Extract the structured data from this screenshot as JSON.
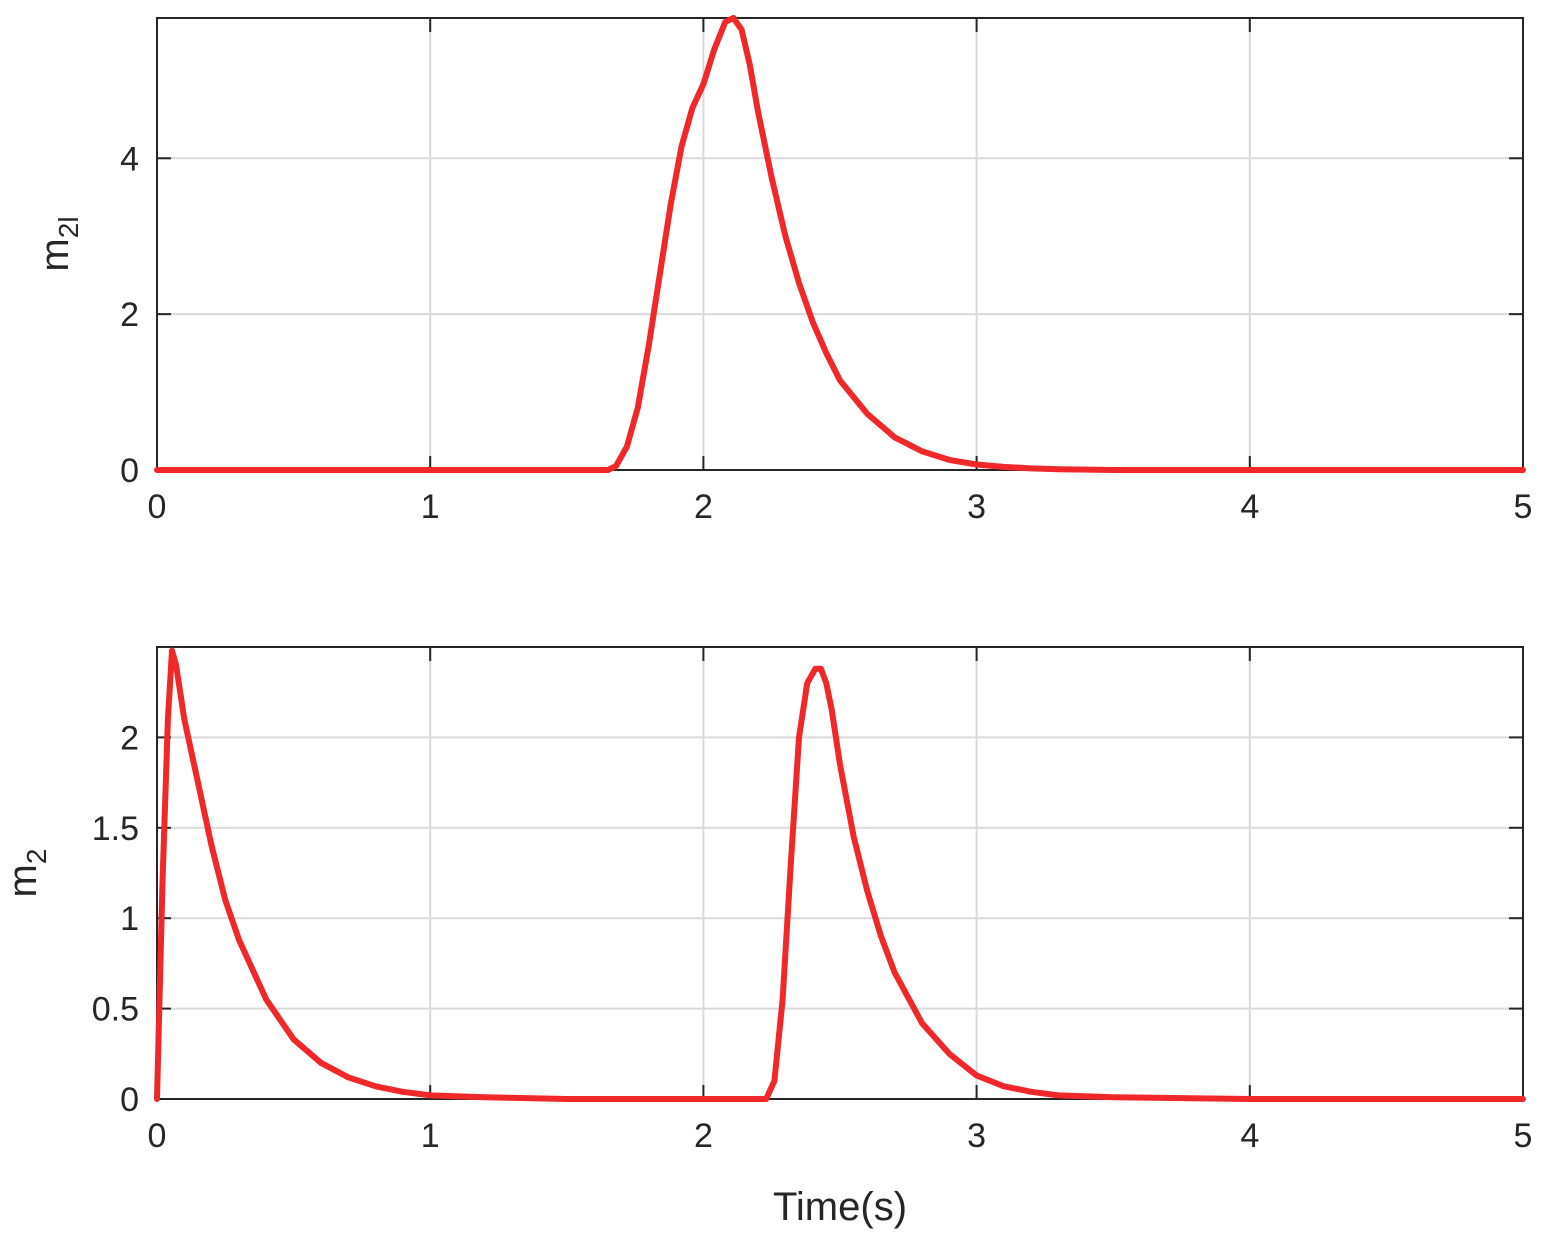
{
  "chart_data": [
    {
      "type": "line",
      "xlabel": "",
      "ylabel_base": "m",
      "ylabel_sub": "2l",
      "xlim": [
        0,
        5
      ],
      "ylim": [
        0,
        5.8
      ],
      "xticks": [
        0,
        1,
        2,
        3,
        4,
        5
      ],
      "yticks": [
        0,
        2,
        4
      ],
      "grid": true,
      "color": "#f0282a",
      "series": [
        {
          "x": [
            0,
            0.5,
            1.0,
            1.5,
            1.65,
            1.68,
            1.72,
            1.76,
            1.8,
            1.84,
            1.88,
            1.92,
            1.96,
            2.0,
            2.04,
            2.08,
            2.11,
            2.14,
            2.17,
            2.2,
            2.25,
            2.3,
            2.35,
            2.4,
            2.45,
            2.5,
            2.6,
            2.7,
            2.8,
            2.9,
            3.0,
            3.1,
            3.2,
            3.3,
            3.5,
            4.0,
            4.5,
            5.0
          ],
          "y": [
            0,
            0,
            0,
            0,
            0,
            0.05,
            0.3,
            0.8,
            1.6,
            2.5,
            3.4,
            4.15,
            4.65,
            4.95,
            5.4,
            5.75,
            5.8,
            5.65,
            5.2,
            4.6,
            3.75,
            3.0,
            2.4,
            1.9,
            1.5,
            1.15,
            0.72,
            0.42,
            0.24,
            0.13,
            0.07,
            0.04,
            0.02,
            0.01,
            0,
            0,
            0,
            0
          ]
        }
      ]
    },
    {
      "type": "line",
      "xlabel": "Time(s)",
      "ylabel_base": "m",
      "ylabel_sub": "2",
      "xlim": [
        0,
        5
      ],
      "ylim": [
        0,
        2.5
      ],
      "xticks": [
        0,
        1,
        2,
        3,
        4,
        5
      ],
      "yticks": [
        0,
        0.5,
        1,
        1.5,
        2
      ],
      "grid": true,
      "color": "#f0282a",
      "series": [
        {
          "x": [
            0,
            0.02,
            0.04,
            0.055,
            0.07,
            0.1,
            0.15,
            0.2,
            0.25,
            0.3,
            0.4,
            0.5,
            0.6,
            0.7,
            0.8,
            0.9,
            1.0,
            1.2,
            1.5,
            2.0,
            2.2,
            2.23,
            2.26,
            2.29,
            2.32,
            2.35,
            2.38,
            2.41,
            2.43,
            2.45,
            2.47,
            2.5,
            2.55,
            2.6,
            2.65,
            2.7,
            2.8,
            2.9,
            3.0,
            3.1,
            3.2,
            3.3,
            3.5,
            4.0,
            4.5,
            5.0
          ],
          "y": [
            0,
            1.2,
            2.1,
            2.48,
            2.4,
            2.1,
            1.75,
            1.4,
            1.1,
            0.88,
            0.55,
            0.33,
            0.2,
            0.12,
            0.07,
            0.04,
            0.02,
            0.01,
            0,
            0,
            0,
            0,
            0.1,
            0.55,
            1.3,
            2.0,
            2.3,
            2.38,
            2.38,
            2.3,
            2.15,
            1.85,
            1.45,
            1.15,
            0.9,
            0.7,
            0.42,
            0.25,
            0.13,
            0.07,
            0.04,
            0.02,
            0.01,
            0,
            0,
            0
          ]
        }
      ]
    }
  ]
}
